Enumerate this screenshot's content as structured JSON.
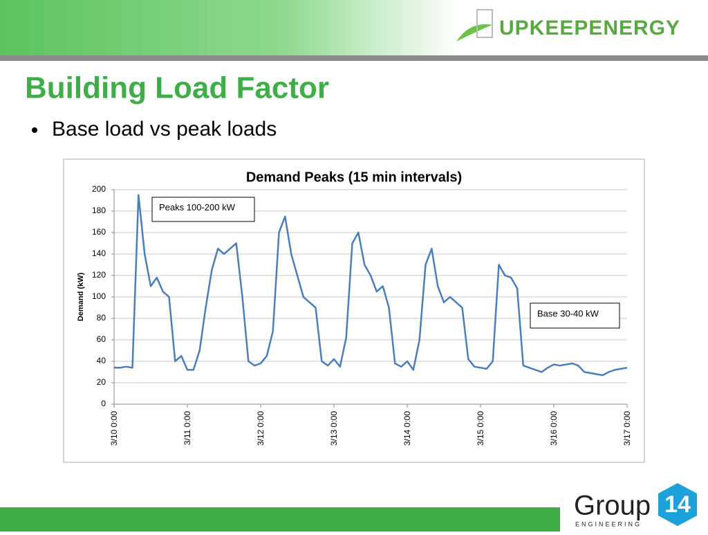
{
  "slide": {
    "title": "Building Load Factor",
    "bullet": "Base load vs peak loads",
    "brand": "UPKEEPENERGY",
    "footer_logo": {
      "name": "Group",
      "number": "14",
      "sub": "ENGINEERING"
    }
  },
  "chart_data": {
    "type": "line",
    "title": "Demand Peaks (15 min intervals)",
    "ylabel": "Demand (kW)",
    "annotations": [
      "Peaks  100-200 kW",
      "Base 30-40 kW"
    ],
    "x": [
      "3/10 0:00",
      "3/10 2:00",
      "3/10 4:00",
      "3/10 6:00",
      "3/10 8:00",
      "3/10 10:00",
      "3/10 12:00",
      "3/10 14:00",
      "3/10 16:00",
      "3/10 18:00",
      "3/10 20:00",
      "3/10 22:00",
      "3/11 0:00",
      "3/11 2:00",
      "3/11 4:00",
      "3/11 6:00",
      "3/11 8:00",
      "3/11 10:00",
      "3/11 12:00",
      "3/11 14:00",
      "3/11 16:00",
      "3/11 18:00",
      "3/11 20:00",
      "3/11 22:00",
      "3/12 0:00",
      "3/12 2:00",
      "3/12 4:00",
      "3/12 6:00",
      "3/12 8:00",
      "3/12 10:00",
      "3/12 12:00",
      "3/12 14:00",
      "3/12 16:00",
      "3/12 18:00",
      "3/12 20:00",
      "3/12 22:00",
      "3/13 0:00",
      "3/13 2:00",
      "3/13 4:00",
      "3/13 6:00",
      "3/13 8:00",
      "3/13 10:00",
      "3/13 12:00",
      "3/13 14:00",
      "3/13 16:00",
      "3/13 18:00",
      "3/13 20:00",
      "3/13 22:00",
      "3/14 0:00",
      "3/14 2:00",
      "3/14 4:00",
      "3/14 6:00",
      "3/14 8:00",
      "3/14 10:00",
      "3/14 12:00",
      "3/14 14:00",
      "3/14 16:00",
      "3/14 18:00",
      "3/14 20:00",
      "3/14 22:00",
      "3/15 0:00",
      "3/15 2:00",
      "3/15 4:00",
      "3/15 6:00",
      "3/15 8:00",
      "3/15 10:00",
      "3/15 12:00",
      "3/15 14:00",
      "3/15 16:00",
      "3/15 18:00",
      "3/15 20:00",
      "3/15 22:00",
      "3/16 0:00",
      "3/16 2:00",
      "3/16 4:00",
      "3/16 6:00",
      "3/16 8:00",
      "3/16 10:00",
      "3/16 12:00",
      "3/16 14:00",
      "3/16 16:00",
      "3/16 18:00",
      "3/16 20:00",
      "3/16 22:00",
      "3/17 0:00"
    ],
    "series": [
      {
        "name": "Demand",
        "color": "#4a7ebb",
        "values": [
          34,
          34,
          35,
          34,
          195,
          140,
          110,
          118,
          105,
          100,
          40,
          45,
          32,
          32,
          50,
          90,
          125,
          145,
          140,
          145,
          150,
          100,
          40,
          36,
          38,
          45,
          68,
          160,
          175,
          140,
          120,
          100,
          95,
          90,
          40,
          36,
          42,
          35,
          62,
          150,
          160,
          130,
          120,
          105,
          110,
          90,
          38,
          35,
          40,
          32,
          60,
          130,
          145,
          110,
          95,
          100,
          95,
          90,
          42,
          35,
          34,
          33,
          40,
          130,
          120,
          118,
          108,
          36,
          34,
          32,
          30,
          34,
          37,
          36,
          37,
          38,
          36,
          30,
          29,
          28,
          27,
          30,
          32,
          33,
          34
        ]
      }
    ],
    "xlim": [
      "3/10 0:00",
      "3/17 0:00"
    ],
    "xticks": [
      "3/10 0:00",
      "3/11 0:00",
      "3/12 0:00",
      "3/13 0:00",
      "3/14 0:00",
      "3/15 0:00",
      "3/16 0:00",
      "3/17 0:00"
    ],
    "ylim": [
      0,
      200
    ],
    "yticks": [
      0,
      20,
      40,
      60,
      80,
      100,
      120,
      140,
      160,
      180,
      200
    ],
    "grid": true
  }
}
